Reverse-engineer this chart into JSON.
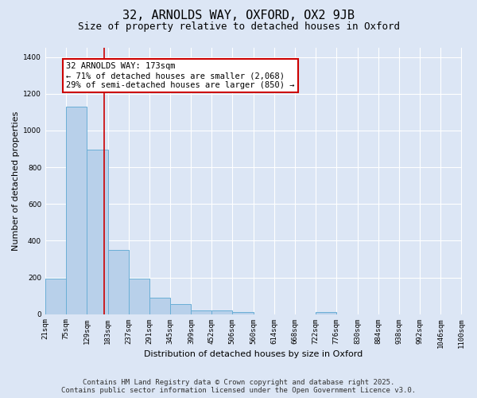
{
  "title_line1": "32, ARNOLDS WAY, OXFORD, OX2 9JB",
  "title_line2": "Size of property relative to detached houses in Oxford",
  "xlabel": "Distribution of detached houses by size in Oxford",
  "ylabel": "Number of detached properties",
  "bar_values": [
    195,
    1130,
    895,
    350,
    195,
    90,
    55,
    20,
    20,
    10,
    0,
    0,
    0,
    10,
    0,
    0,
    0,
    0,
    0,
    0
  ],
  "bin_edges": [
    21,
    75,
    129,
    183,
    237,
    291,
    345,
    399,
    452,
    506,
    560,
    614,
    668,
    722,
    776,
    830,
    884,
    938,
    992,
    1046,
    1100
  ],
  "tick_labels": [
    "21sqm",
    "75sqm",
    "129sqm",
    "183sqm",
    "237sqm",
    "291sqm",
    "345sqm",
    "399sqm",
    "452sqm",
    "506sqm",
    "560sqm",
    "614sqm",
    "668sqm",
    "722sqm",
    "776sqm",
    "830sqm",
    "884sqm",
    "938sqm",
    "992sqm",
    "1046sqm",
    "1100sqm"
  ],
  "bar_color": "#b8d0ea",
  "bar_edge_color": "#6aaed6",
  "bg_color": "#dce6f5",
  "grid_color": "#ffffff",
  "vline_x": 173,
  "vline_color": "#cc0000",
  "annotation_text": "32 ARNOLDS WAY: 173sqm\n← 71% of detached houses are smaller (2,068)\n29% of semi-detached houses are larger (850) →",
  "annotation_box_color": "#ffffff",
  "annotation_border_color": "#cc0000",
  "ylim": [
    0,
    1450
  ],
  "yticks": [
    0,
    200,
    400,
    600,
    800,
    1000,
    1200,
    1400
  ],
  "footer_line1": "Contains HM Land Registry data © Crown copyright and database right 2025.",
  "footer_line2": "Contains public sector information licensed under the Open Government Licence v3.0.",
  "title_fontsize": 11,
  "subtitle_fontsize": 9,
  "axis_label_fontsize": 8,
  "tick_fontsize": 6.5,
  "annotation_fontsize": 7.5,
  "footer_fontsize": 6.5
}
